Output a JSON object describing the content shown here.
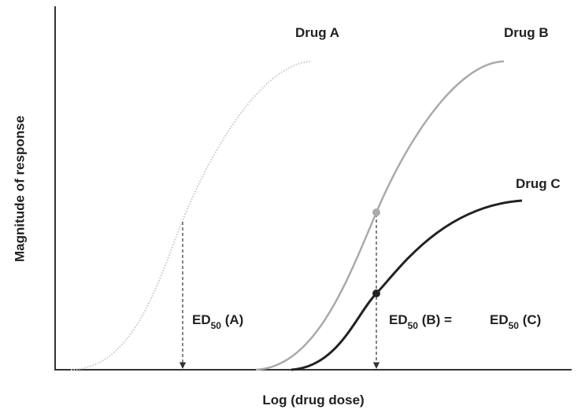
{
  "curves": [
    {
      "label": "Drug A"
    },
    {
      "label": "Drug B"
    },
    {
      "label": "Drug C"
    }
  ],
  "ed50_labels": [
    {
      "prefix": "ED",
      "sub": "50",
      "suffix": " (A)"
    },
    {
      "prefix": "ED",
      "sub": "50",
      "suffix": " (B) ="
    },
    {
      "prefix": "ED",
      "sub": "50",
      "suffix": " (C)"
    }
  ],
  "y_axis_label": "Magnitude of response",
  "x_axis_label": "Log (drug dose)"
}
